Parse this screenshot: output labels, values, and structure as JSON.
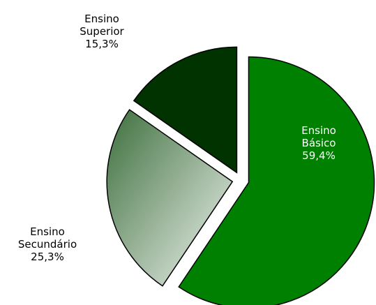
{
  "chart_data": {
    "type": "pie",
    "categories": [
      "Ensino Básico",
      "Ensino Secundário",
      "Ensino Superior"
    ],
    "values": [
      59.4,
      25.3,
      15.3
    ],
    "value_labels": [
      "59,4%",
      "25,3%",
      "15,3%"
    ],
    "colors": [
      "#008000",
      "#3d6f3d",
      "#003300"
    ]
  }
}
